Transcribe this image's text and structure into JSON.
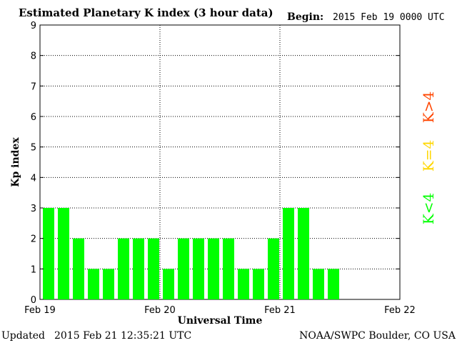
{
  "header": {
    "title": "Estimated Planetary K index (3 hour data)",
    "begin_label": "Begin:",
    "begin_value": "2015 Feb 19 0000 UTC"
  },
  "footer": {
    "updated_label": "Updated",
    "updated_value": "2015 Feb 21 12:35:21 UTC",
    "source": "NOAA/SWPC Boulder, CO USA"
  },
  "legend": {
    "high": {
      "label": "K>4",
      "color": "#ff4500"
    },
    "equal": {
      "label": "K=4",
      "color": "#ffd700"
    },
    "low": {
      "label": "K<4",
      "color": "#00ff00"
    }
  },
  "chart_data": {
    "type": "bar",
    "title": "Estimated Planetary K index (3 hour data)",
    "xlabel": "Universal Time",
    "ylabel": "Kp index",
    "ylim": [
      0,
      9
    ],
    "yticks": [
      0,
      1,
      2,
      3,
      4,
      5,
      6,
      7,
      8,
      9
    ],
    "xticks": [
      "Feb 19",
      "Feb 20",
      "Feb 21",
      "Feb 22"
    ],
    "bars_per_day": 8,
    "total_slots": 24,
    "values": [
      3,
      3,
      2,
      1,
      1,
      2,
      2,
      2,
      1,
      2,
      2,
      2,
      2,
      1,
      1,
      2,
      3,
      3,
      1,
      1
    ],
    "bar_color": "#00ff00",
    "grid": true
  }
}
